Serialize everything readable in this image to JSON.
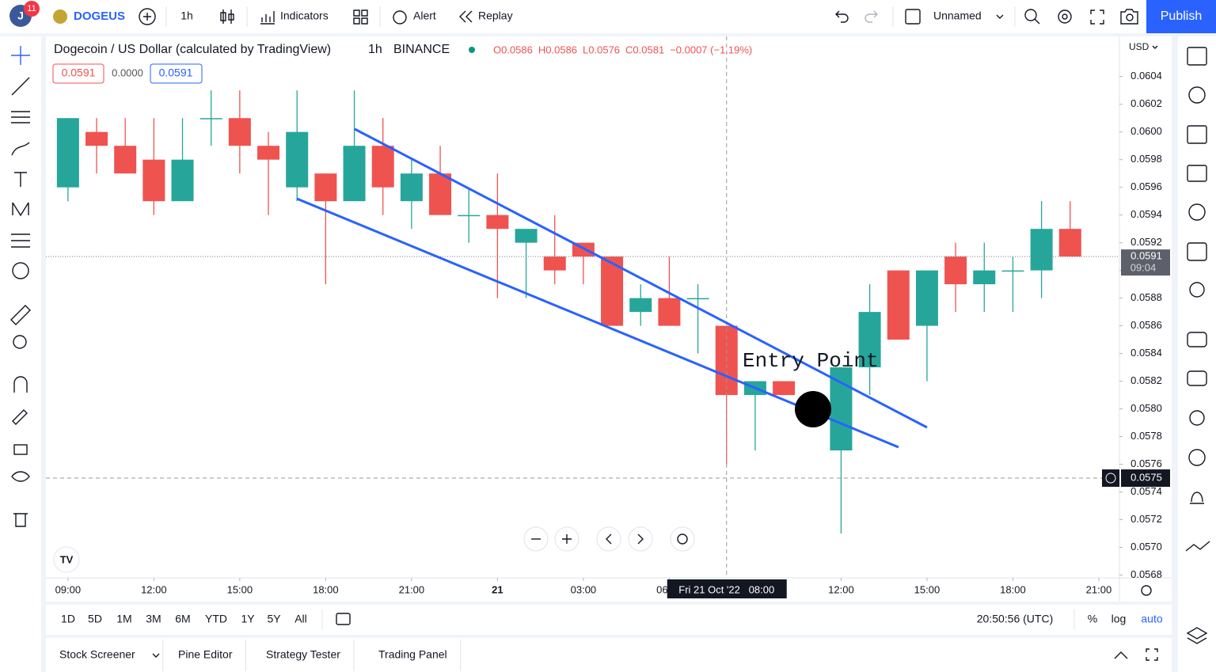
{
  "toolbar": {
    "notifications": "11",
    "symbol": "DOGEUS",
    "interval": "1h",
    "indicators": "Indicators",
    "alert": "Alert",
    "replay": "Replay",
    "layout_name": "Unnamed",
    "publish": "Publish"
  },
  "legend": {
    "title": "Dogecoin / US Dollar (calculated by TradingView)",
    "interval": "1h",
    "exchange": "BINANCE",
    "ohlc": [
      "O0.0586",
      "H0.0586",
      "L0.0576",
      "C0.0581",
      "−0.0007 (−1.19%)"
    ],
    "sell": "0.0591",
    "spread": "0.0000",
    "buy": "0.0591"
  },
  "chart_data": {
    "type": "candlestick",
    "currency": "USD",
    "up_color": "#26a69a",
    "down_color": "#ef5350",
    "open": [
      0.0596,
      0.06,
      0.0599,
      0.0598,
      0.0595,
      0.0601,
      0.0601,
      0.0599,
      0.0596,
      0.0597,
      0.0595,
      0.0599,
      0.0595,
      0.0597,
      0.0594,
      0.0594,
      0.0592,
      0.0591,
      0.0592,
      0.0591,
      0.0587,
      0.0588,
      0.0588,
      0.0586,
      0.0581,
      0.0582,
      null,
      0.0577,
      0.0583,
      0.059,
      0.0586,
      0.0591,
      0.0589,
      0.059,
      0.059,
      0.0593
    ],
    "high": [
      0.0601,
      0.0601,
      0.0601,
      0.0601,
      0.0601,
      0.0603,
      0.0603,
      0.06,
      0.0603,
      0.0597,
      0.0603,
      0.0601,
      0.0598,
      0.0599,
      0.0596,
      0.0597,
      0.0593,
      0.0594,
      0.0592,
      0.0591,
      0.0589,
      0.0591,
      0.0589,
      0.0586,
      0.0582,
      0.0582,
      null,
      0.0583,
      0.0589,
      0.059,
      0.059,
      0.0592,
      0.0592,
      0.0591,
      0.0595,
      0.0595
    ],
    "low": [
      0.0595,
      0.0597,
      0.0597,
      0.0594,
      0.0595,
      0.0599,
      0.0597,
      0.0594,
      0.0595,
      0.0589,
      0.0595,
      0.0594,
      0.0593,
      0.0594,
      0.0592,
      0.0588,
      0.0588,
      0.0589,
      0.0589,
      0.0586,
      0.0586,
      0.0586,
      0.0584,
      0.0576,
      0.0577,
      0.0581,
      null,
      0.0571,
      0.0581,
      0.0585,
      0.0582,
      0.0587,
      0.0587,
      0.0587,
      0.0588,
      0.0591
    ],
    "close": [
      0.0601,
      0.0599,
      0.0597,
      0.0595,
      0.0598,
      0.0601,
      0.0599,
      0.0598,
      0.06,
      0.0595,
      0.0599,
      0.0596,
      0.0597,
      0.0594,
      0.0594,
      0.0593,
      0.0593,
      0.059,
      0.0591,
      0.0586,
      0.0588,
      0.0586,
      0.0588,
      0.0581,
      0.0582,
      0.0581,
      null,
      0.0583,
      0.0587,
      0.0585,
      0.059,
      0.0589,
      0.059,
      0.059,
      0.0593,
      0.0591
    ],
    "xlim": [
      -0.77,
      36.72
    ],
    "xticks": [
      {
        "value": 0,
        "label": "09:00"
      },
      {
        "value": 3,
        "label": "12:00"
      },
      {
        "value": 6,
        "label": "15:00"
      },
      {
        "value": 9,
        "label": "18:00"
      },
      {
        "value": 12,
        "label": "21:00"
      },
      {
        "value": 15,
        "label": "21"
      },
      {
        "value": 18,
        "label": "03:00"
      },
      {
        "value": 21,
        "label": "06:00"
      },
      {
        "value": 27,
        "label": "12:00"
      },
      {
        "value": 30,
        "label": "15:00"
      },
      {
        "value": 33,
        "label": "18:00"
      },
      {
        "value": 36,
        "label": "21:00"
      }
    ],
    "ylim": [
      0.05678,
      0.06069
    ],
    "yticks": [
      0.0604,
      0.0602,
      {
        "value": 0.06,
        "label": "0.0600"
      },
      0.0598,
      0.0596,
      0.0594,
      0.0592,
      {
        "value": 0.059,
        "label": "0.0590"
      },
      0.0588,
      0.0586,
      0.0584,
      0.0582,
      {
        "value": 0.058,
        "label": "0.0580"
      },
      0.0578,
      0.0576,
      0.0574,
      0.0572,
      {
        "value": 0.057,
        "label": "0.0570"
      },
      0.0568
    ],
    "last_price": {
      "value": 0.0591,
      "label": "0.0591",
      "countdown": "09:04"
    },
    "crosshair": {
      "price": {
        "value": 0.0575,
        "label": "0.0575"
      },
      "x": 23,
      "time_label": "Fri 21 Oct '22   08:00"
    },
    "annotation": "Entry Point"
  },
  "range_bar": {
    "ranges": [
      "1D",
      "5D",
      "1M",
      "3M",
      "6M",
      "YTD",
      "1Y",
      "5Y",
      "All"
    ],
    "clock": "20:50:56 (UTC)",
    "percent": "%",
    "log": "log",
    "auto": "auto"
  },
  "tabs": [
    "Stock Screener",
    "Pine Editor",
    "Strategy Tester",
    "Trading Panel"
  ]
}
